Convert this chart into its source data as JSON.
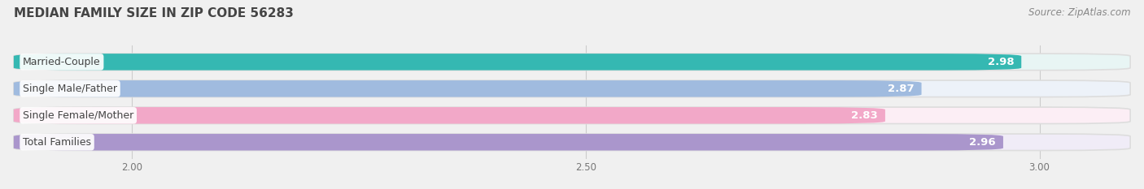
{
  "title": "MEDIAN FAMILY SIZE IN ZIP CODE 56283",
  "source": "Source: ZipAtlas.com",
  "categories": [
    "Married-Couple",
    "Single Male/Father",
    "Single Female/Mother",
    "Total Families"
  ],
  "values": [
    2.98,
    2.87,
    2.83,
    2.96
  ],
  "bar_colors": [
    "#35b8b2",
    "#a0bbdf",
    "#f2a8c8",
    "#aa96cc"
  ],
  "bar_bg_colors": [
    "#e8f5f4",
    "#edf2f9",
    "#fceef5",
    "#f0ecf7"
  ],
  "xlim_min": 1.87,
  "xlim_max": 3.1,
  "xticks": [
    2.0,
    2.5,
    3.0
  ],
  "xtick_labels": [
    "2.00",
    "2.50",
    "3.00"
  ],
  "bar_height": 0.62,
  "title_fontsize": 11,
  "source_fontsize": 8.5,
  "value_fontsize": 9.5,
  "category_fontsize": 9,
  "tick_fontsize": 8.5,
  "fig_bg_color": "#f0f0f0",
  "plot_bg_color": "#f0f0f0",
  "grid_color": "#cccccc",
  "title_color": "#444444",
  "source_color": "#888888",
  "tick_color": "#777777",
  "category_text_color": "#444444",
  "value_text_color": "white"
}
